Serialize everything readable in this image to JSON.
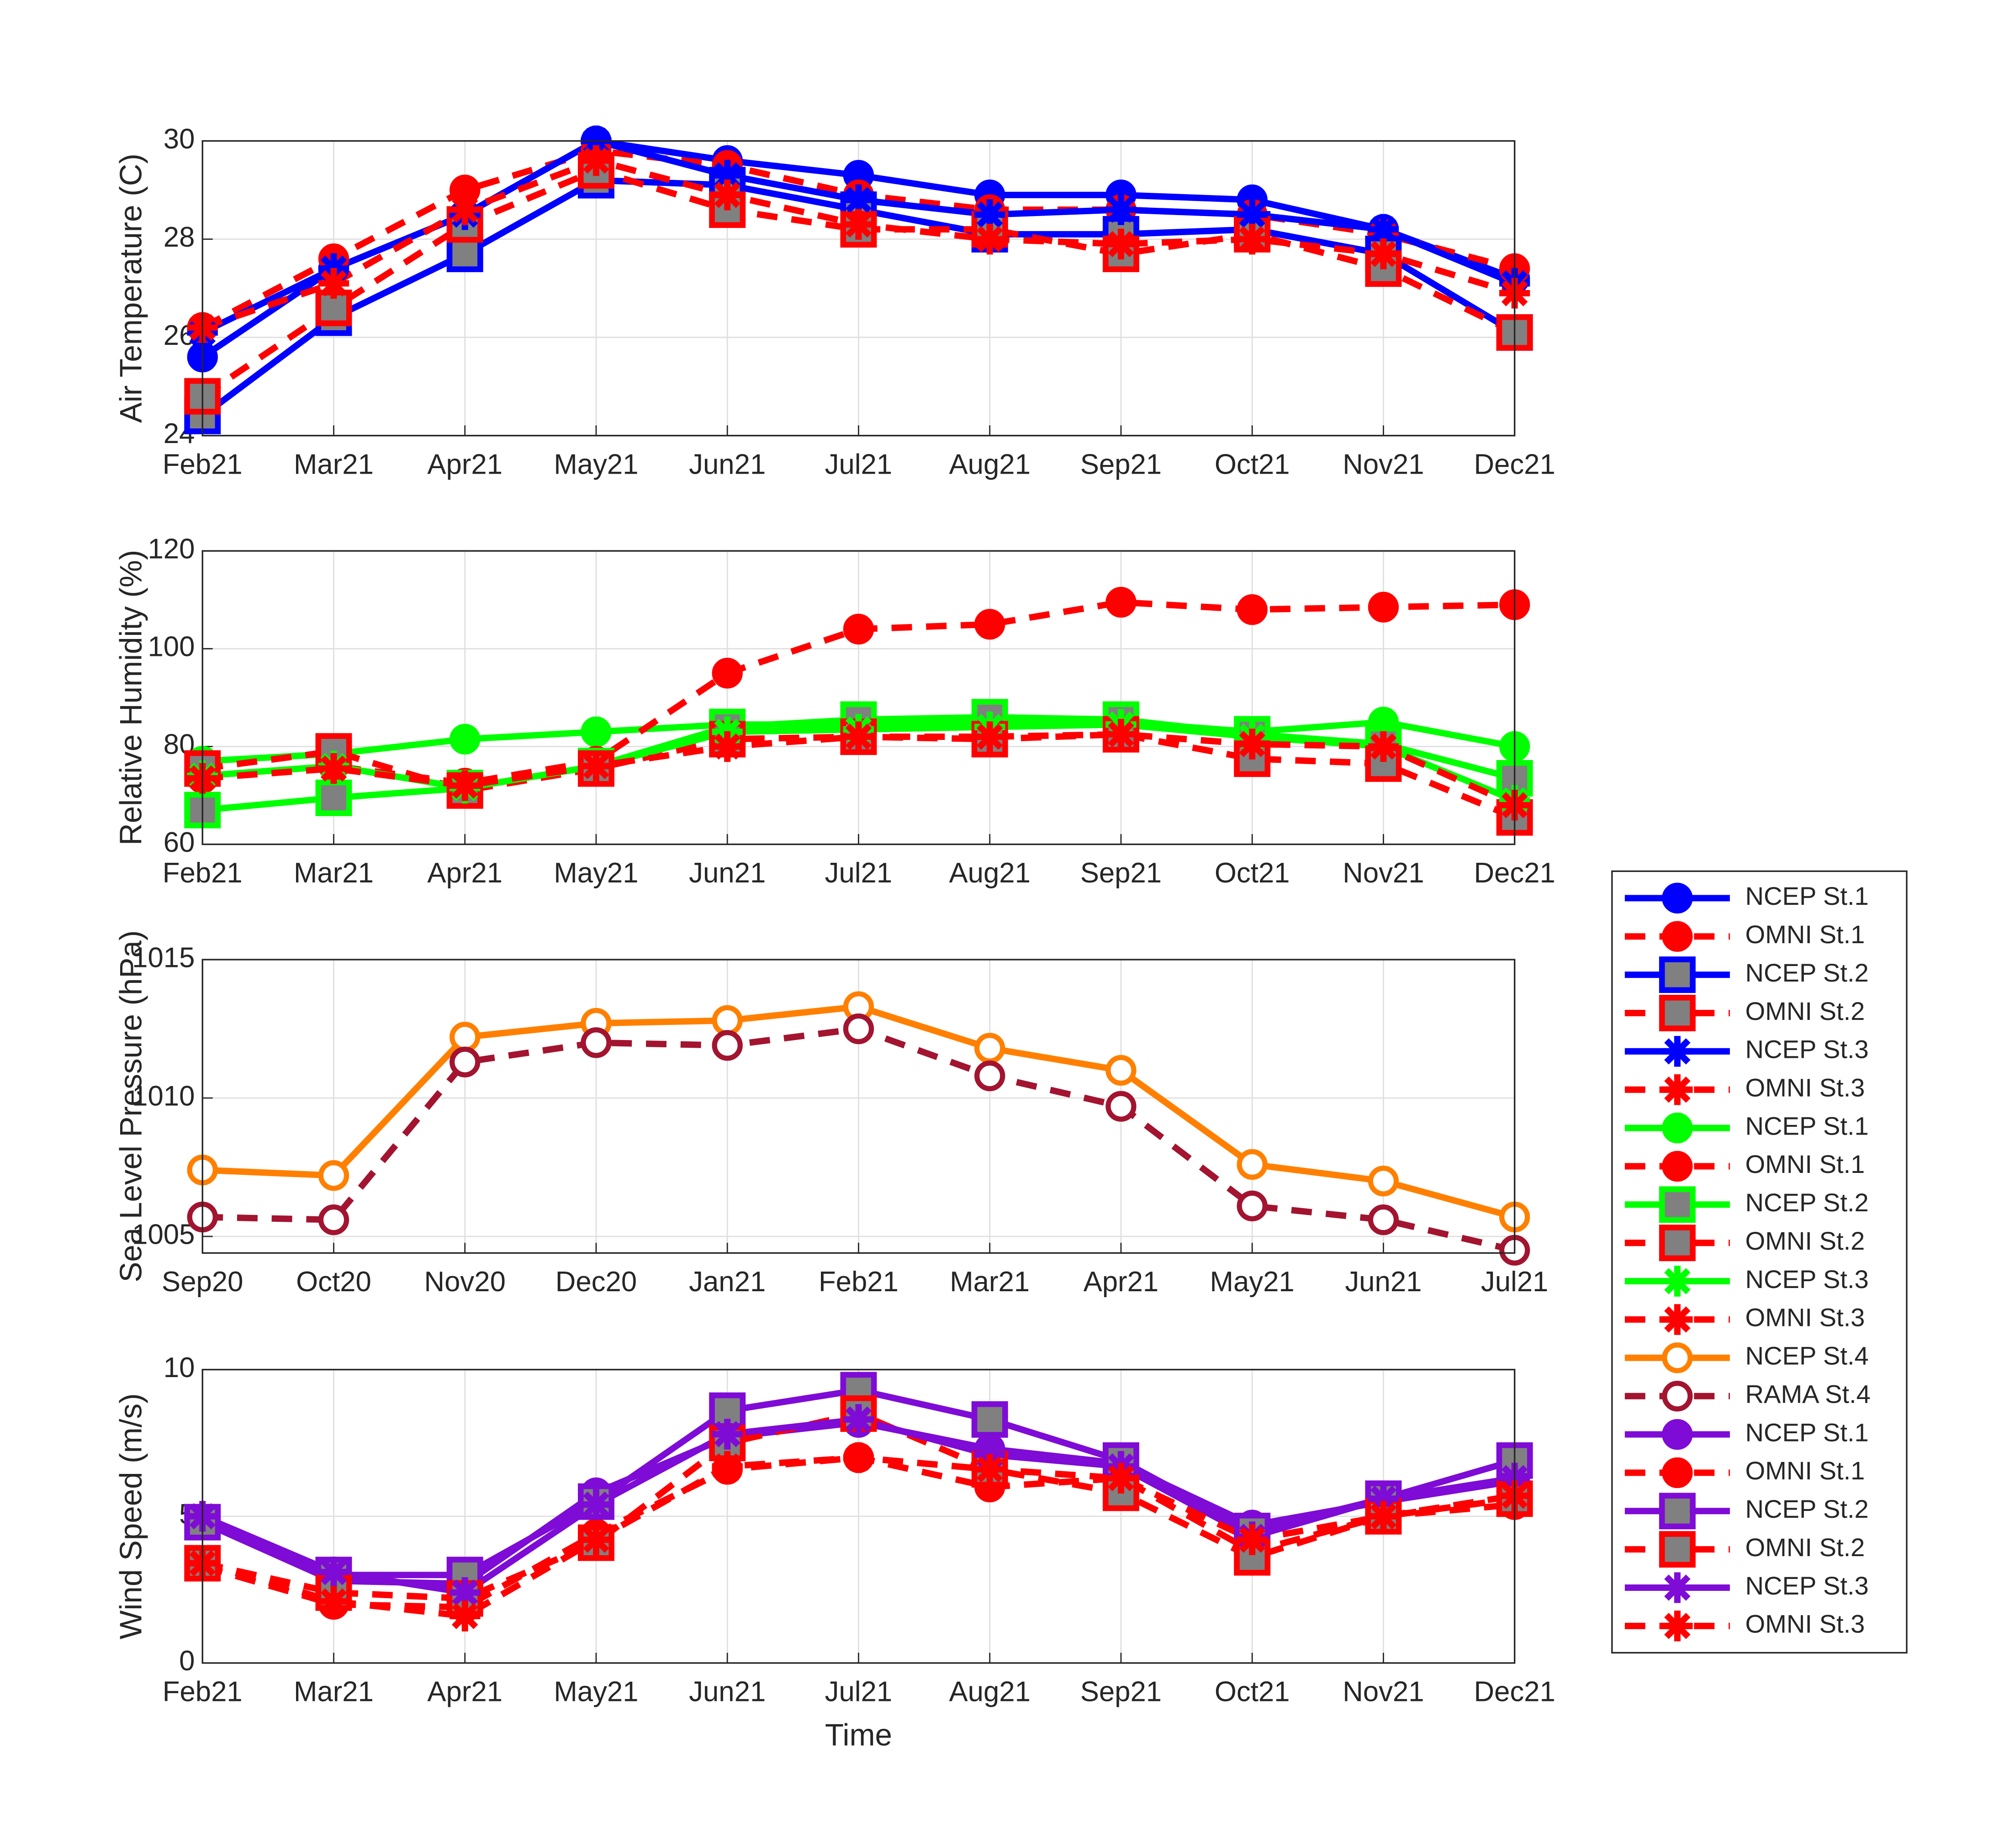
{
  "chart_data": [
    {
      "type": "line",
      "ylabel": "Air Temperature (C)",
      "categories": [
        "Feb21",
        "Mar21",
        "Apr21",
        "May21",
        "Jun21",
        "Jul21",
        "Aug21",
        "Sep21",
        "Oct21",
        "Nov21",
        "Dec21"
      ],
      "ylim": [
        24,
        30
      ],
      "yticks": [
        24,
        26,
        28,
        30
      ],
      "grid": true,
      "series": [
        {
          "name": "NCEP St.1",
          "color": "#0000ff",
          "marker": "circle",
          "dashed": false,
          "values": [
            25.6,
            27.4,
            28.5,
            30.0,
            29.6,
            29.3,
            28.9,
            28.9,
            28.8,
            28.2,
            27.2
          ]
        },
        {
          "name": "OMNI St.1",
          "color": "#ff0000",
          "marker": "circle",
          "dashed": true,
          "values": [
            26.2,
            27.6,
            29.0,
            29.8,
            29.5,
            28.9,
            28.6,
            28.6,
            28.5,
            28.1,
            27.4
          ]
        },
        {
          "name": "NCEP St.2",
          "color": "#0000ff",
          "marker": "square",
          "dashed": false,
          "values": [
            24.4,
            26.4,
            27.7,
            29.2,
            29.1,
            28.6,
            28.1,
            28.1,
            28.2,
            27.7,
            26.1
          ]
        },
        {
          "name": "OMNI St.2",
          "color": "#ff0000",
          "marker": "square",
          "dashed": true,
          "values": [
            24.8,
            26.6,
            28.3,
            29.4,
            28.6,
            28.2,
            28.2,
            27.7,
            28.1,
            27.4,
            26.1
          ]
        },
        {
          "name": "NCEP St.3",
          "color": "#0000ff",
          "marker": "star",
          "dashed": false,
          "values": [
            26.1,
            27.4,
            28.5,
            30.0,
            29.3,
            28.8,
            28.5,
            28.6,
            28.5,
            28.2,
            27.1
          ]
        },
        {
          "name": "OMNI St.3",
          "color": "#ff0000",
          "marker": "star",
          "dashed": true,
          "values": [
            26.2,
            27.1,
            28.6,
            29.6,
            28.9,
            28.3,
            28.0,
            27.9,
            28.0,
            27.7,
            26.9
          ]
        }
      ]
    },
    {
      "type": "line",
      "ylabel": "Relative Humidity (%)",
      "categories": [
        "Feb21",
        "Mar21",
        "Apr21",
        "May21",
        "Jun21",
        "Jul21",
        "Aug21",
        "Sep21",
        "Oct21",
        "Nov21",
        "Dec21"
      ],
      "ylim": [
        60,
        120
      ],
      "yticks": [
        60,
        80,
        100,
        120
      ],
      "grid": true,
      "series": [
        {
          "name": "NCEP St.1",
          "color": "#00ff00",
          "marker": "circle",
          "dashed": false,
          "values": [
            77,
            78.5,
            81.5,
            83,
            84.5,
            84.5,
            85,
            85,
            83,
            85,
            80
          ]
        },
        {
          "name": "OMNI St.1",
          "color": "#ff0000",
          "marker": "circle",
          "dashed": true,
          "values": [
            73.5,
            76,
            72.5,
            77,
            95,
            104,
            105,
            109.5,
            108,
            108.5,
            109
          ]
        },
        {
          "name": "NCEP St.2",
          "color": "#00ff00",
          "marker": "square",
          "dashed": false,
          "values": [
            67,
            69.5,
            71.5,
            76,
            84,
            85.5,
            86,
            85.5,
            82.5,
            80.5,
            73.5
          ]
        },
        {
          "name": "OMNI St.2",
          "color": "#ff0000",
          "marker": "square",
          "dashed": true,
          "values": [
            75.5,
            79,
            71,
            75.5,
            81.5,
            82,
            81.5,
            82.5,
            77.5,
            76.5,
            65.5
          ]
        },
        {
          "name": "NCEP St.3",
          "color": "#00ff00",
          "marker": "star",
          "dashed": false,
          "values": [
            74,
            76,
            71.5,
            76,
            83,
            83.5,
            84,
            84.5,
            82,
            80,
            69
          ]
        },
        {
          "name": "OMNI St.3",
          "color": "#ff0000",
          "marker": "star",
          "dashed": true,
          "values": [
            73.5,
            75.5,
            72,
            76,
            80,
            82,
            82,
            82.5,
            80.5,
            80,
            68
          ]
        }
      ]
    },
    {
      "type": "line",
      "ylabel": "Sea Level Pressure (hPa)",
      "categories": [
        "Sep20",
        "Oct20",
        "Nov20",
        "Dec20",
        "Jan21",
        "Feb21",
        "Mar21",
        "Apr21",
        "May21",
        "Jun21",
        "Jul21"
      ],
      "ylim": [
        1004.4,
        1015
      ],
      "yticks": [
        1005,
        1010,
        1015
      ],
      "grid": true,
      "series": [
        {
          "name": "NCEP St.4",
          "color": "#ff8000",
          "marker": "open-circle",
          "dashed": false,
          "values": [
            1007.4,
            1007.2,
            1012.2,
            1012.7,
            1012.8,
            1013.3,
            1011.8,
            1011.0,
            1007.6,
            1007.0,
            1005.7
          ]
        },
        {
          "name": "RAMA St.4",
          "color": "#a2142f",
          "marker": "open-circle",
          "dashed": true,
          "values": [
            1005.7,
            1005.6,
            1011.3,
            1012.0,
            1011.9,
            1012.5,
            1010.8,
            1009.7,
            1006.1,
            1005.6,
            1004.5
          ]
        }
      ]
    },
    {
      "type": "line",
      "ylabel": "Wind Speed (m/s)",
      "xlabel": "Time",
      "categories": [
        "Feb21",
        "Mar21",
        "Apr21",
        "May21",
        "Jun21",
        "Jul21",
        "Aug21",
        "Sep21",
        "Oct21",
        "Nov21",
        "Dec21"
      ],
      "ylim": [
        0,
        10
      ],
      "yticks": [
        0,
        5,
        10
      ],
      "grid": true,
      "series": [
        {
          "name": "NCEP St.1",
          "color": "#7e0bd6",
          "marker": "circle",
          "dashed": false,
          "values": [
            4.8,
            2.8,
            2.7,
            5.8,
            7.7,
            8.2,
            7.3,
            6.8,
            4.7,
            5.5,
            6.2
          ]
        },
        {
          "name": "OMNI St.1",
          "color": "#ff0000",
          "marker": "circle",
          "dashed": true,
          "values": [
            3.3,
            2.0,
            1.9,
            4.4,
            6.6,
            7.0,
            6.0,
            6.3,
            3.8,
            5.0,
            5.4
          ]
        },
        {
          "name": "NCEP St.2",
          "color": "#7e0bd6",
          "marker": "square",
          "dashed": false,
          "values": [
            4.8,
            3.0,
            3.0,
            5.5,
            8.6,
            9.3,
            8.3,
            6.9,
            4.5,
            5.6,
            6.9
          ]
        },
        {
          "name": "OMNI St.2",
          "color": "#ff0000",
          "marker": "square",
          "dashed": true,
          "values": [
            3.4,
            2.4,
            2.2,
            4.1,
            7.5,
            8.5,
            6.6,
            5.8,
            3.6,
            5.0,
            5.6
          ]
        },
        {
          "name": "NCEP St.3",
          "color": "#7e0bd6",
          "marker": "star",
          "dashed": false,
          "values": [
            5.0,
            3.1,
            2.4,
            5.4,
            7.8,
            8.3,
            7.1,
            6.7,
            4.3,
            5.6,
            6.3
          ]
        },
        {
          "name": "OMNI St.3",
          "color": "#ff0000",
          "marker": "star",
          "dashed": true,
          "values": [
            3.4,
            2.1,
            1.6,
            4.2,
            6.7,
            7.0,
            6.6,
            6.3,
            4.2,
            5.0,
            5.7
          ]
        }
      ]
    }
  ]
}
